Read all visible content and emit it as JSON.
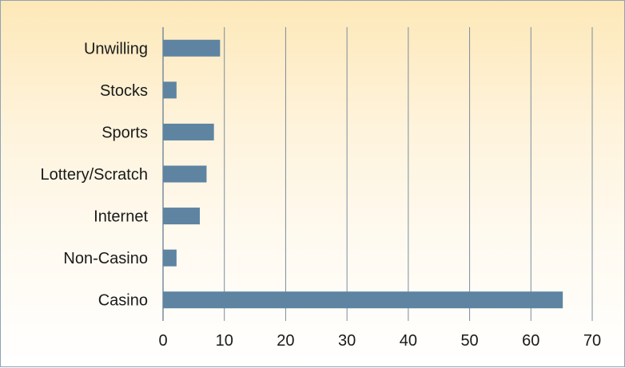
{
  "chart_data": {
    "type": "bar",
    "orientation": "horizontal",
    "categories": [
      "Unwilling",
      "Stocks",
      "Sports",
      "Lottery/Scratch",
      "Internet",
      "Non-Casino",
      "Casino"
    ],
    "values": [
      9.3,
      2.2,
      8.3,
      7.1,
      6.0,
      2.2,
      65.2
    ],
    "xlim": [
      0,
      70
    ],
    "xticks": [
      "0",
      "10",
      "20",
      "30",
      "40",
      "50",
      "60",
      "70"
    ],
    "grid": "vertical",
    "bar_color": "#5e84a2",
    "grid_color": "#7a8c9c"
  }
}
